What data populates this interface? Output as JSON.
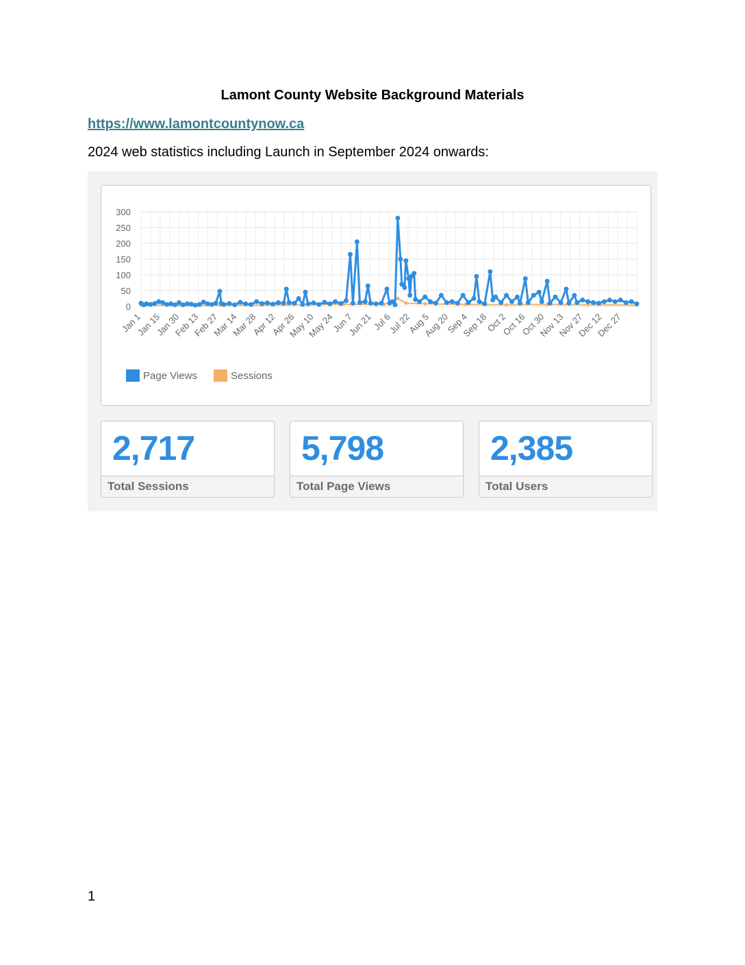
{
  "document": {
    "title": "Lamont County Website Background Materials",
    "link": "https://www.lamontcountynow.ca",
    "intro": "2024 web statistics including Launch in September 2024 onwards:",
    "page_number": "1"
  },
  "colors": {
    "page_views": "#2f8ee0",
    "sessions": "#f6b066",
    "stat_value": "#2f8ee0",
    "link": "#3a7d8c"
  },
  "stats": [
    {
      "value": "2,717",
      "label": "Total Sessions"
    },
    {
      "value": "5,798",
      "label": "Total Page Views"
    },
    {
      "value": "2,385",
      "label": "Total Users"
    }
  ],
  "chart_data": {
    "type": "line",
    "title": "",
    "xlabel": "",
    "ylabel": "",
    "ylim": [
      0,
      300
    ],
    "yticks": [
      0,
      50,
      100,
      150,
      200,
      250,
      300
    ],
    "xticks": [
      "Jan 1",
      "Jan 15",
      "Jan 30",
      "Feb 13",
      "Feb 27",
      "Mar 14",
      "Mar 28",
      "Apr 12",
      "Apr 26",
      "May 10",
      "May 24",
      "Jun 7",
      "Jun 21",
      "Jul 6",
      "Jul 22",
      "Aug 5",
      "Aug 20",
      "Sep 4",
      "Sep 18",
      "Oct 2",
      "Oct 16",
      "Oct 30",
      "Nov 13",
      "Nov 27",
      "Dec 12",
      "Dec 27"
    ],
    "grid": true,
    "legend_position": "bottom-left",
    "x_domain": [
      1,
      366
    ],
    "series": [
      {
        "name": "Page Views",
        "points": [
          [
            1,
            10
          ],
          [
            3,
            5
          ],
          [
            5,
            8
          ],
          [
            8,
            6
          ],
          [
            11,
            9
          ],
          [
            14,
            15
          ],
          [
            17,
            12
          ],
          [
            20,
            6
          ],
          [
            23,
            8
          ],
          [
            26,
            5
          ],
          [
            29,
            12
          ],
          [
            32,
            5
          ],
          [
            35,
            8
          ],
          [
            38,
            7
          ],
          [
            41,
            4
          ],
          [
            44,
            6
          ],
          [
            47,
            14
          ],
          [
            50,
            8
          ],
          [
            53,
            6
          ],
          [
            56,
            10
          ],
          [
            59,
            48
          ],
          [
            60,
            10
          ],
          [
            62,
            6
          ],
          [
            66,
            9
          ],
          [
            70,
            5
          ],
          [
            74,
            13
          ],
          [
            78,
            8
          ],
          [
            82,
            6
          ],
          [
            86,
            15
          ],
          [
            90,
            9
          ],
          [
            94,
            11
          ],
          [
            98,
            7
          ],
          [
            102,
            12
          ],
          [
            106,
            10
          ],
          [
            108,
            55
          ],
          [
            110,
            12
          ],
          [
            114,
            10
          ],
          [
            117,
            25
          ],
          [
            120,
            6
          ],
          [
            122,
            45
          ],
          [
            124,
            8
          ],
          [
            128,
            11
          ],
          [
            132,
            6
          ],
          [
            136,
            13
          ],
          [
            140,
            8
          ],
          [
            144,
            15
          ],
          [
            148,
            9
          ],
          [
            152,
            18
          ],
          [
            155,
            165
          ],
          [
            157,
            10
          ],
          [
            160,
            205
          ],
          [
            162,
            12
          ],
          [
            166,
            15
          ],
          [
            168,
            65
          ],
          [
            170,
            10
          ],
          [
            174,
            8
          ],
          [
            178,
            10
          ],
          [
            182,
            55
          ],
          [
            184,
            10
          ],
          [
            186,
            15
          ],
          [
            188,
            5
          ],
          [
            190,
            280
          ],
          [
            192,
            150
          ],
          [
            193,
            70
          ],
          [
            195,
            60
          ],
          [
            196,
            145
          ],
          [
            198,
            88
          ],
          [
            199,
            35
          ],
          [
            200,
            95
          ],
          [
            202,
            105
          ],
          [
            203,
            22
          ],
          [
            206,
            15
          ],
          [
            210,
            30
          ],
          [
            214,
            15
          ],
          [
            218,
            10
          ],
          [
            222,
            35
          ],
          [
            226,
            12
          ],
          [
            230,
            15
          ],
          [
            234,
            10
          ],
          [
            238,
            35
          ],
          [
            242,
            12
          ],
          [
            246,
            25
          ],
          [
            248,
            95
          ],
          [
            250,
            15
          ],
          [
            254,
            8
          ],
          [
            258,
            110
          ],
          [
            260,
            20
          ],
          [
            262,
            30
          ],
          [
            266,
            12
          ],
          [
            270,
            35
          ],
          [
            274,
            15
          ],
          [
            278,
            30
          ],
          [
            280,
            10
          ],
          [
            284,
            88
          ],
          [
            286,
            12
          ],
          [
            290,
            35
          ],
          [
            294,
            45
          ],
          [
            296,
            15
          ],
          [
            300,
            80
          ],
          [
            302,
            10
          ],
          [
            306,
            30
          ],
          [
            310,
            12
          ],
          [
            314,
            55
          ],
          [
            316,
            10
          ],
          [
            320,
            35
          ],
          [
            322,
            12
          ],
          [
            326,
            20
          ],
          [
            330,
            15
          ],
          [
            334,
            12
          ],
          [
            338,
            10
          ],
          [
            342,
            15
          ],
          [
            346,
            20
          ],
          [
            350,
            15
          ],
          [
            354,
            20
          ],
          [
            358,
            12
          ],
          [
            362,
            15
          ],
          [
            366,
            8
          ]
        ]
      },
      {
        "name": "Sessions",
        "points": [
          [
            1,
            4
          ],
          [
            30,
            3
          ],
          [
            60,
            4
          ],
          [
            90,
            4
          ],
          [
            120,
            5
          ],
          [
            150,
            7
          ],
          [
            180,
            6
          ],
          [
            190,
            25
          ],
          [
            196,
            10
          ],
          [
            210,
            8
          ],
          [
            240,
            6
          ],
          [
            270,
            5
          ],
          [
            300,
            6
          ],
          [
            330,
            5
          ],
          [
            366,
            4
          ]
        ]
      }
    ]
  }
}
